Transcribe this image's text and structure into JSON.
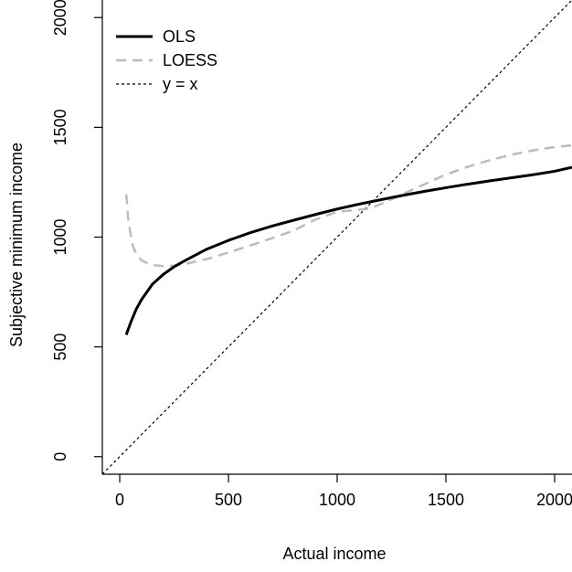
{
  "chart_data": {
    "type": "line",
    "title": "",
    "xlabel": "Actual income",
    "ylabel": "Subjective minimum income",
    "xlim": [
      -80,
      2080
    ],
    "ylim": [
      -80,
      2080
    ],
    "xticks": [
      0,
      500,
      1000,
      1500,
      2000
    ],
    "yticks": [
      0,
      500,
      1000,
      1500,
      2000
    ],
    "xtick_labels": [
      "0",
      "500",
      "1000",
      "1500",
      "2000"
    ],
    "ytick_labels": [
      "0",
      "500",
      "1000",
      "1500",
      "2000"
    ],
    "grid": false,
    "legend_position": "top-left",
    "series": [
      {
        "name": "OLS",
        "style": "solid",
        "color": "#000000",
        "x": [
          30,
          50,
          75,
          100,
          150,
          200,
          250,
          300,
          400,
          500,
          600,
          700,
          800,
          900,
          1000,
          1100,
          1200,
          1300,
          1400,
          1500,
          1600,
          1700,
          1800,
          1900,
          2000,
          2080
        ],
        "y": [
          555,
          610,
          670,
          715,
          785,
          830,
          865,
          893,
          945,
          985,
          1020,
          1050,
          1077,
          1103,
          1128,
          1150,
          1170,
          1190,
          1208,
          1225,
          1241,
          1256,
          1270,
          1284,
          1300,
          1318
        ]
      },
      {
        "name": "LOESS",
        "style": "dashed",
        "color": "#bbbbbb",
        "x": [
          30,
          40,
          60,
          80,
          100,
          130,
          160,
          200,
          250,
          300,
          400,
          500,
          600,
          700,
          800,
          900,
          1000,
          1100,
          1150,
          1200,
          1300,
          1400,
          1500,
          1600,
          1700,
          1800,
          1900,
          2000,
          2080
        ],
        "y": [
          1195,
          1070,
          960,
          915,
          895,
          880,
          872,
          868,
          870,
          878,
          900,
          930,
          962,
          995,
          1030,
          1080,
          1115,
          1125,
          1130,
          1150,
          1195,
          1240,
          1285,
          1320,
          1350,
          1375,
          1395,
          1410,
          1418
        ]
      },
      {
        "name": "y = x",
        "style": "dotted",
        "color": "#000000",
        "x": [
          -80,
          2080
        ],
        "y": [
          -80,
          2080
        ]
      }
    ]
  }
}
